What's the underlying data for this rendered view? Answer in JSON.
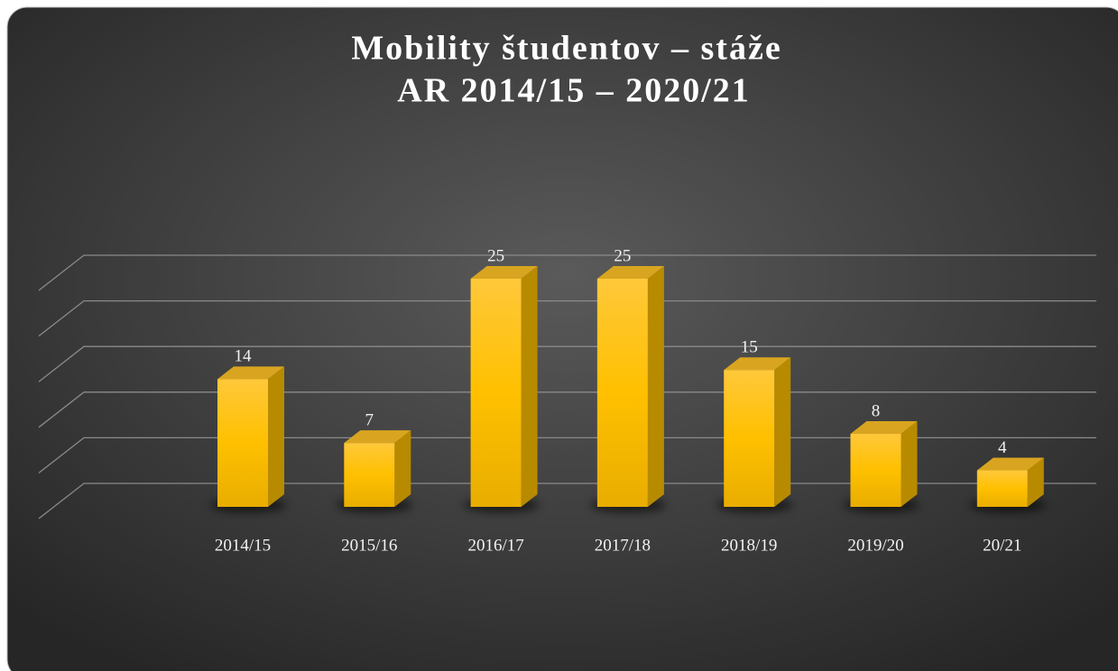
{
  "chart_data": {
    "type": "bar3d",
    "title": "Mobility študentov – stáže",
    "subtitle": "AR 2014/15 – 2020/21",
    "categories": [
      "2014/15",
      "2015/16",
      "2016/17",
      "2017/18",
      "2018/19",
      "2019/20",
      "20/21"
    ],
    "values": [
      14,
      7,
      25,
      25,
      15,
      8,
      4
    ],
    "color": "#ffc000",
    "ylim": [
      0,
      25
    ],
    "yticks": [
      0,
      5,
      10,
      15,
      20,
      25
    ],
    "grid": true
  }
}
